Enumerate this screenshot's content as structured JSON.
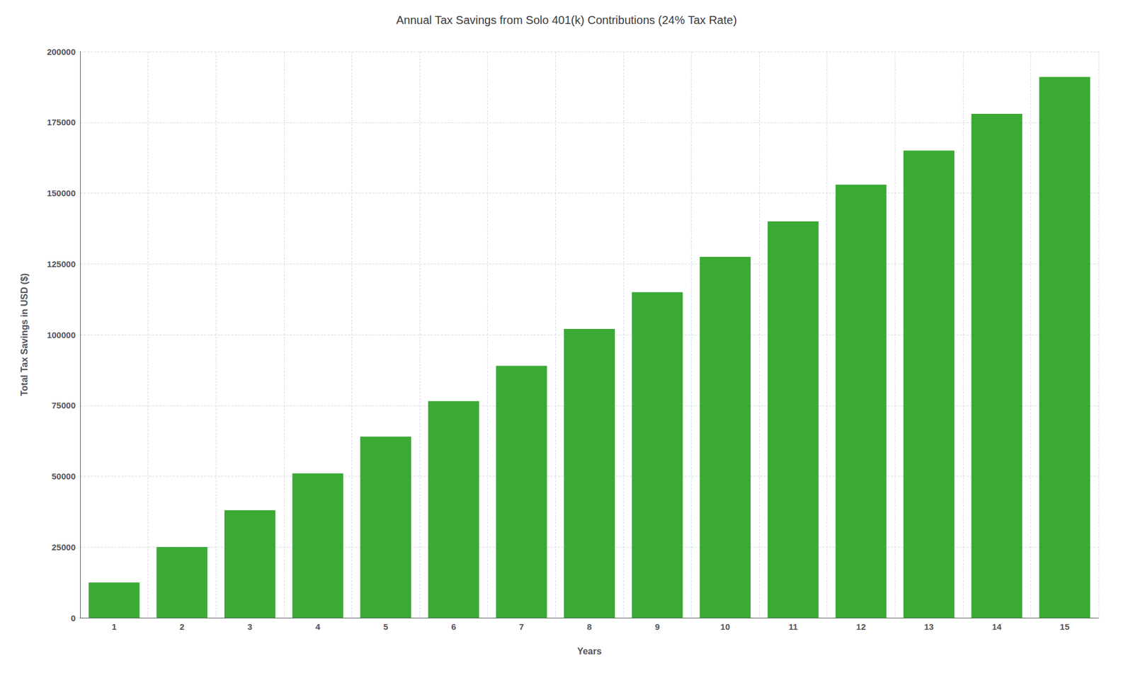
{
  "chart_data": {
    "type": "bar",
    "title": "Annual Tax Savings from Solo 401(k) Contributions (24% Tax Rate)",
    "xlabel": "Years",
    "ylabel": "Total Tax Savings in USD ($)",
    "categories": [
      1,
      2,
      3,
      4,
      5,
      6,
      7,
      8,
      9,
      10,
      11,
      12,
      13,
      14,
      15
    ],
    "values": [
      12500,
      25000,
      38000,
      51000,
      64000,
      76500,
      89000,
      102000,
      115000,
      127500,
      140000,
      153000,
      165000,
      178000,
      191000
    ],
    "color": "#3aaa35",
    "ylim": [
      0,
      200000
    ],
    "yticks": [
      0,
      25000,
      50000,
      75000,
      100000,
      125000,
      150000,
      175000,
      200000
    ],
    "grid": true
  }
}
